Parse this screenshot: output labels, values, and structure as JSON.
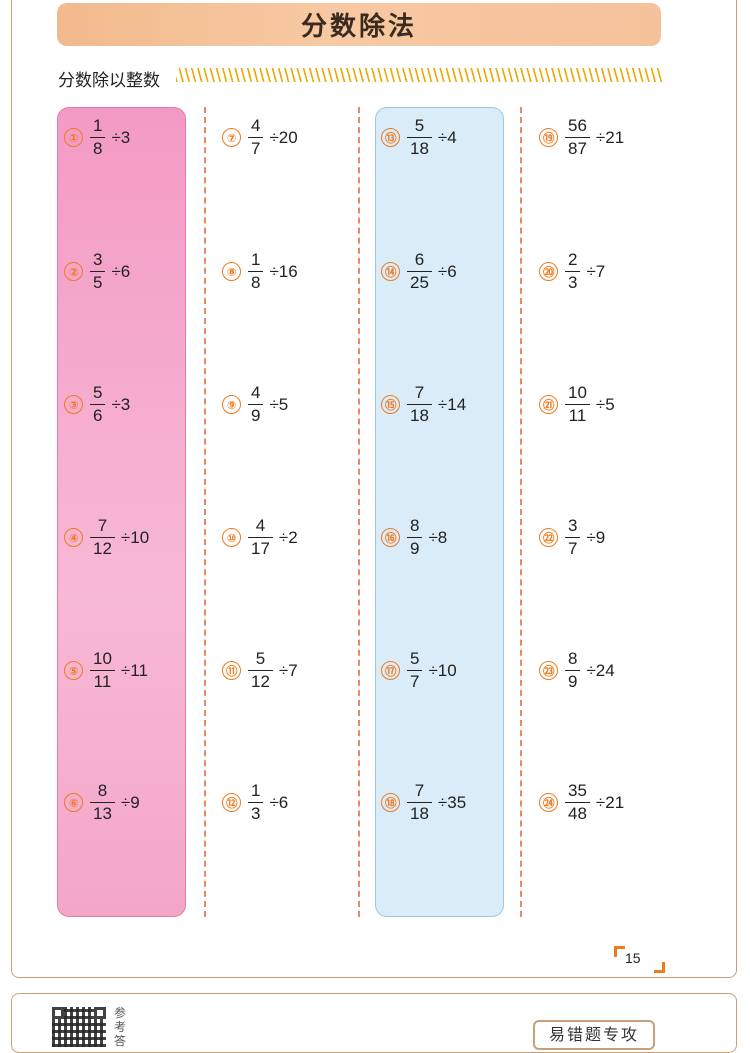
{
  "header": {
    "title": "分数除法",
    "subtitle": "分数除以整数"
  },
  "problems": [
    {
      "n": "①",
      "num": "1",
      "den": "8",
      "op": "÷3"
    },
    {
      "n": "②",
      "num": "3",
      "den": "5",
      "op": "÷6"
    },
    {
      "n": "③",
      "num": "5",
      "den": "6",
      "op": "÷3"
    },
    {
      "n": "④",
      "num": "7",
      "den": "12",
      "op": "÷10"
    },
    {
      "n": "⑤",
      "num": "10",
      "den": "11",
      "op": "÷11"
    },
    {
      "n": "⑥",
      "num": "8",
      "den": "13",
      "op": "÷9"
    },
    {
      "n": "⑦",
      "num": "4",
      "den": "7",
      "op": "÷20"
    },
    {
      "n": "⑧",
      "num": "1",
      "den": "8",
      "op": "÷16"
    },
    {
      "n": "⑨",
      "num": "4",
      "den": "9",
      "op": "÷5"
    },
    {
      "n": "⑩",
      "num": "4",
      "den": "17",
      "op": "÷2"
    },
    {
      "n": "⑪",
      "num": "5",
      "den": "12",
      "op": "÷7"
    },
    {
      "n": "⑫",
      "num": "1",
      "den": "3",
      "op": "÷6"
    },
    {
      "n": "⑬",
      "num": "5",
      "den": "18",
      "op": "÷4"
    },
    {
      "n": "⑭",
      "num": "6",
      "den": "25",
      "op": "÷6"
    },
    {
      "n": "⑮",
      "num": "7",
      "den": "18",
      "op": "÷14"
    },
    {
      "n": "⑯",
      "num": "8",
      "den": "9",
      "op": "÷8"
    },
    {
      "n": "⑰",
      "num": "5",
      "den": "7",
      "op": "÷10"
    },
    {
      "n": "⑱",
      "num": "7",
      "den": "18",
      "op": "÷35"
    },
    {
      "n": "⑲",
      "num": "56",
      "den": "87",
      "op": "÷21"
    },
    {
      "n": "⑳",
      "num": "2",
      "den": "3",
      "op": "÷7"
    },
    {
      "n": "㉑",
      "num": "10",
      "den": "11",
      "op": "÷5"
    },
    {
      "n": "㉒",
      "num": "3",
      "den": "7",
      "op": "÷9"
    },
    {
      "n": "㉓",
      "num": "8",
      "den": "9",
      "op": "÷24"
    },
    {
      "n": "㉔",
      "num": "35",
      "den": "48",
      "op": "÷21"
    }
  ],
  "footer": {
    "page_number": "15",
    "answer_label": "参考答",
    "tag": "易错题专攻"
  }
}
